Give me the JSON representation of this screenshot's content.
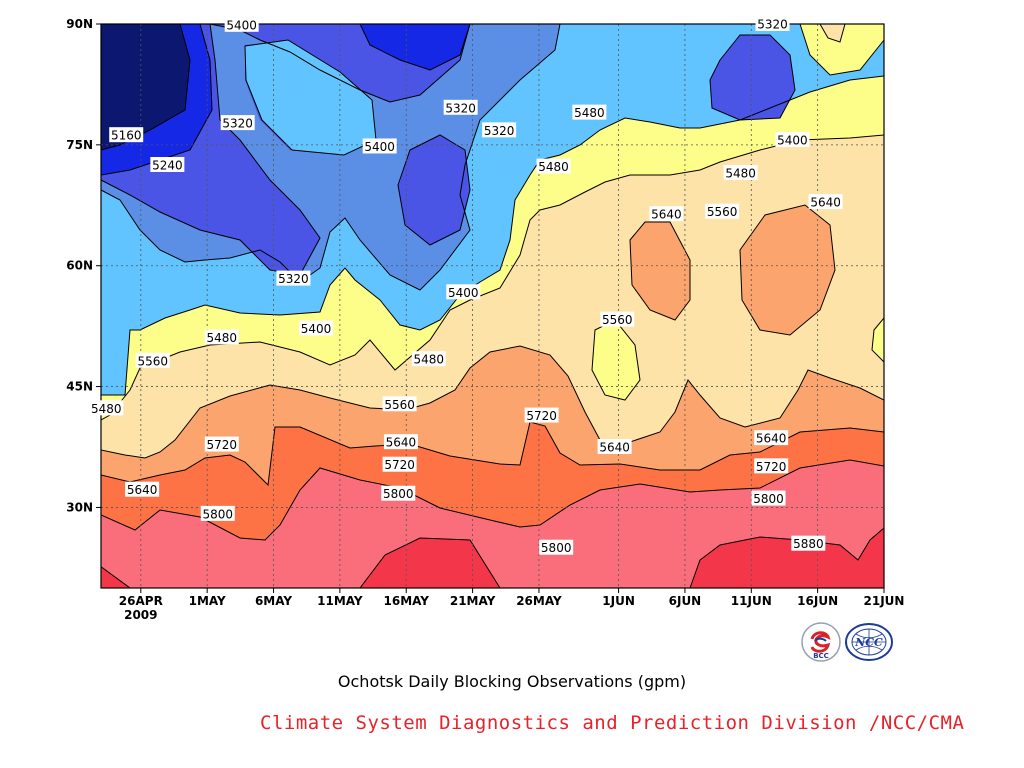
{
  "chart_data": {
    "type": "contour",
    "title": "Ochotsk Daily Blocking Observations (gpm)",
    "credit": "Climate System Diagnostics and Prediction Division /NCC/CMA",
    "x_ticks": [
      {
        "label": "26APR",
        "day": 0
      },
      {
        "label": "1MAY",
        "day": 5
      },
      {
        "label": "6MAY",
        "day": 10
      },
      {
        "label": "11MAY",
        "day": 15
      },
      {
        "label": "16MAY",
        "day": 20
      },
      {
        "label": "21MAY",
        "day": 25
      },
      {
        "label": "26MAY",
        "day": 30
      },
      {
        "label": "1JUN",
        "day": 36
      },
      {
        "label": "6JUN",
        "day": 41
      },
      {
        "label": "11JUN",
        "day": 46
      },
      {
        "label": "16JUN",
        "day": 51
      },
      {
        "label": "21JUN",
        "day": 56
      }
    ],
    "x_year_label": "2009",
    "y_ticks": [
      {
        "label": "30N",
        "lat": 30
      },
      {
        "label": "45N",
        "lat": 45
      },
      {
        "label": "60N",
        "lat": 60
      },
      {
        "label": "75N",
        "lat": 75
      },
      {
        "label": "90N",
        "lat": 90
      }
    ],
    "xlim": [
      -3,
      56
    ],
    "ylim": [
      20,
      90
    ],
    "grid": true,
    "levels": [
      5160,
      5240,
      5320,
      5400,
      5480,
      5560,
      5640,
      5720,
      5800,
      5880
    ],
    "level_colors": [
      "#0c1770",
      "#1428e6",
      "#4a55e6",
      "#5b8fe6",
      "#62c4ff",
      "#fdfd8a",
      "#fde3a8",
      "#fca46e",
      "#fd7346",
      "#f96e7a",
      "#f4364b"
    ],
    "contour_labels": [
      {
        "text": "5400",
        "day": 7.6,
        "lat": 89.9
      },
      {
        "text": "5320",
        "day": 47.6,
        "lat": 90
      },
      {
        "text": "5320",
        "day": 24.1,
        "lat": 79.6
      },
      {
        "text": "5320",
        "day": 7.3,
        "lat": 77.7
      },
      {
        "text": "5320",
        "day": 27.0,
        "lat": 76.8
      },
      {
        "text": "5160",
        "day": -1.1,
        "lat": 76.2
      },
      {
        "text": "5400",
        "day": 18.0,
        "lat": 74.8
      },
      {
        "text": "5240",
        "day": 2.0,
        "lat": 72.5
      },
      {
        "text": "5480",
        "day": 33.8,
        "lat": 79.0
      },
      {
        "text": "5400",
        "day": 49.1,
        "lat": 75.6
      },
      {
        "text": "5480",
        "day": 31.1,
        "lat": 72.3
      },
      {
        "text": "5480",
        "day": 45.2,
        "lat": 71.5
      },
      {
        "text": "5640",
        "day": 39.6,
        "lat": 66.4
      },
      {
        "text": "5560",
        "day": 43.8,
        "lat": 66.7
      },
      {
        "text": "5640",
        "day": 51.6,
        "lat": 67.9
      },
      {
        "text": "5320",
        "day": 11.5,
        "lat": 58.4
      },
      {
        "text": "5400",
        "day": 24.3,
        "lat": 56.7
      },
      {
        "text": "5560",
        "day": 35.9,
        "lat": 53.3
      },
      {
        "text": "5480",
        "day": 6.1,
        "lat": 51.1
      },
      {
        "text": "5400",
        "day": 13.2,
        "lat": 52.2
      },
      {
        "text": "5560",
        "day": 0.9,
        "lat": 48.2
      },
      {
        "text": "5480",
        "day": 21.7,
        "lat": 48.4
      },
      {
        "text": "5480",
        "day": -2.6,
        "lat": 42.3
      },
      {
        "text": "5560",
        "day": 19.5,
        "lat": 42.8
      },
      {
        "text": "5720",
        "day": 30.2,
        "lat": 41.4
      },
      {
        "text": "5720",
        "day": 6.1,
        "lat": 37.8
      },
      {
        "text": "5640",
        "day": 19.6,
        "lat": 38.1
      },
      {
        "text": "5640",
        "day": 35.7,
        "lat": 37.5
      },
      {
        "text": "5640",
        "day": 47.5,
        "lat": 38.6
      },
      {
        "text": "5720",
        "day": 19.5,
        "lat": 35.3
      },
      {
        "text": "5720",
        "day": 47.5,
        "lat": 35.1
      },
      {
        "text": "5640",
        "day": 0.1,
        "lat": 32.2
      },
      {
        "text": "5800",
        "day": 19.4,
        "lat": 31.7
      },
      {
        "text": "5800",
        "day": 47.3,
        "lat": 31.1
      },
      {
        "text": "5800",
        "day": 5.8,
        "lat": 29.2
      },
      {
        "text": "5800",
        "day": 31.3,
        "lat": 25.0
      },
      {
        "text": "5880",
        "day": 50.3,
        "lat": 25.5
      }
    ]
  },
  "logos": [
    {
      "name": "bcc-logo",
      "text": "BCC",
      "color": "#1b3a9a"
    },
    {
      "name": "ncc-logo",
      "text": "NCC",
      "color": "#1b3a9a"
    }
  ]
}
